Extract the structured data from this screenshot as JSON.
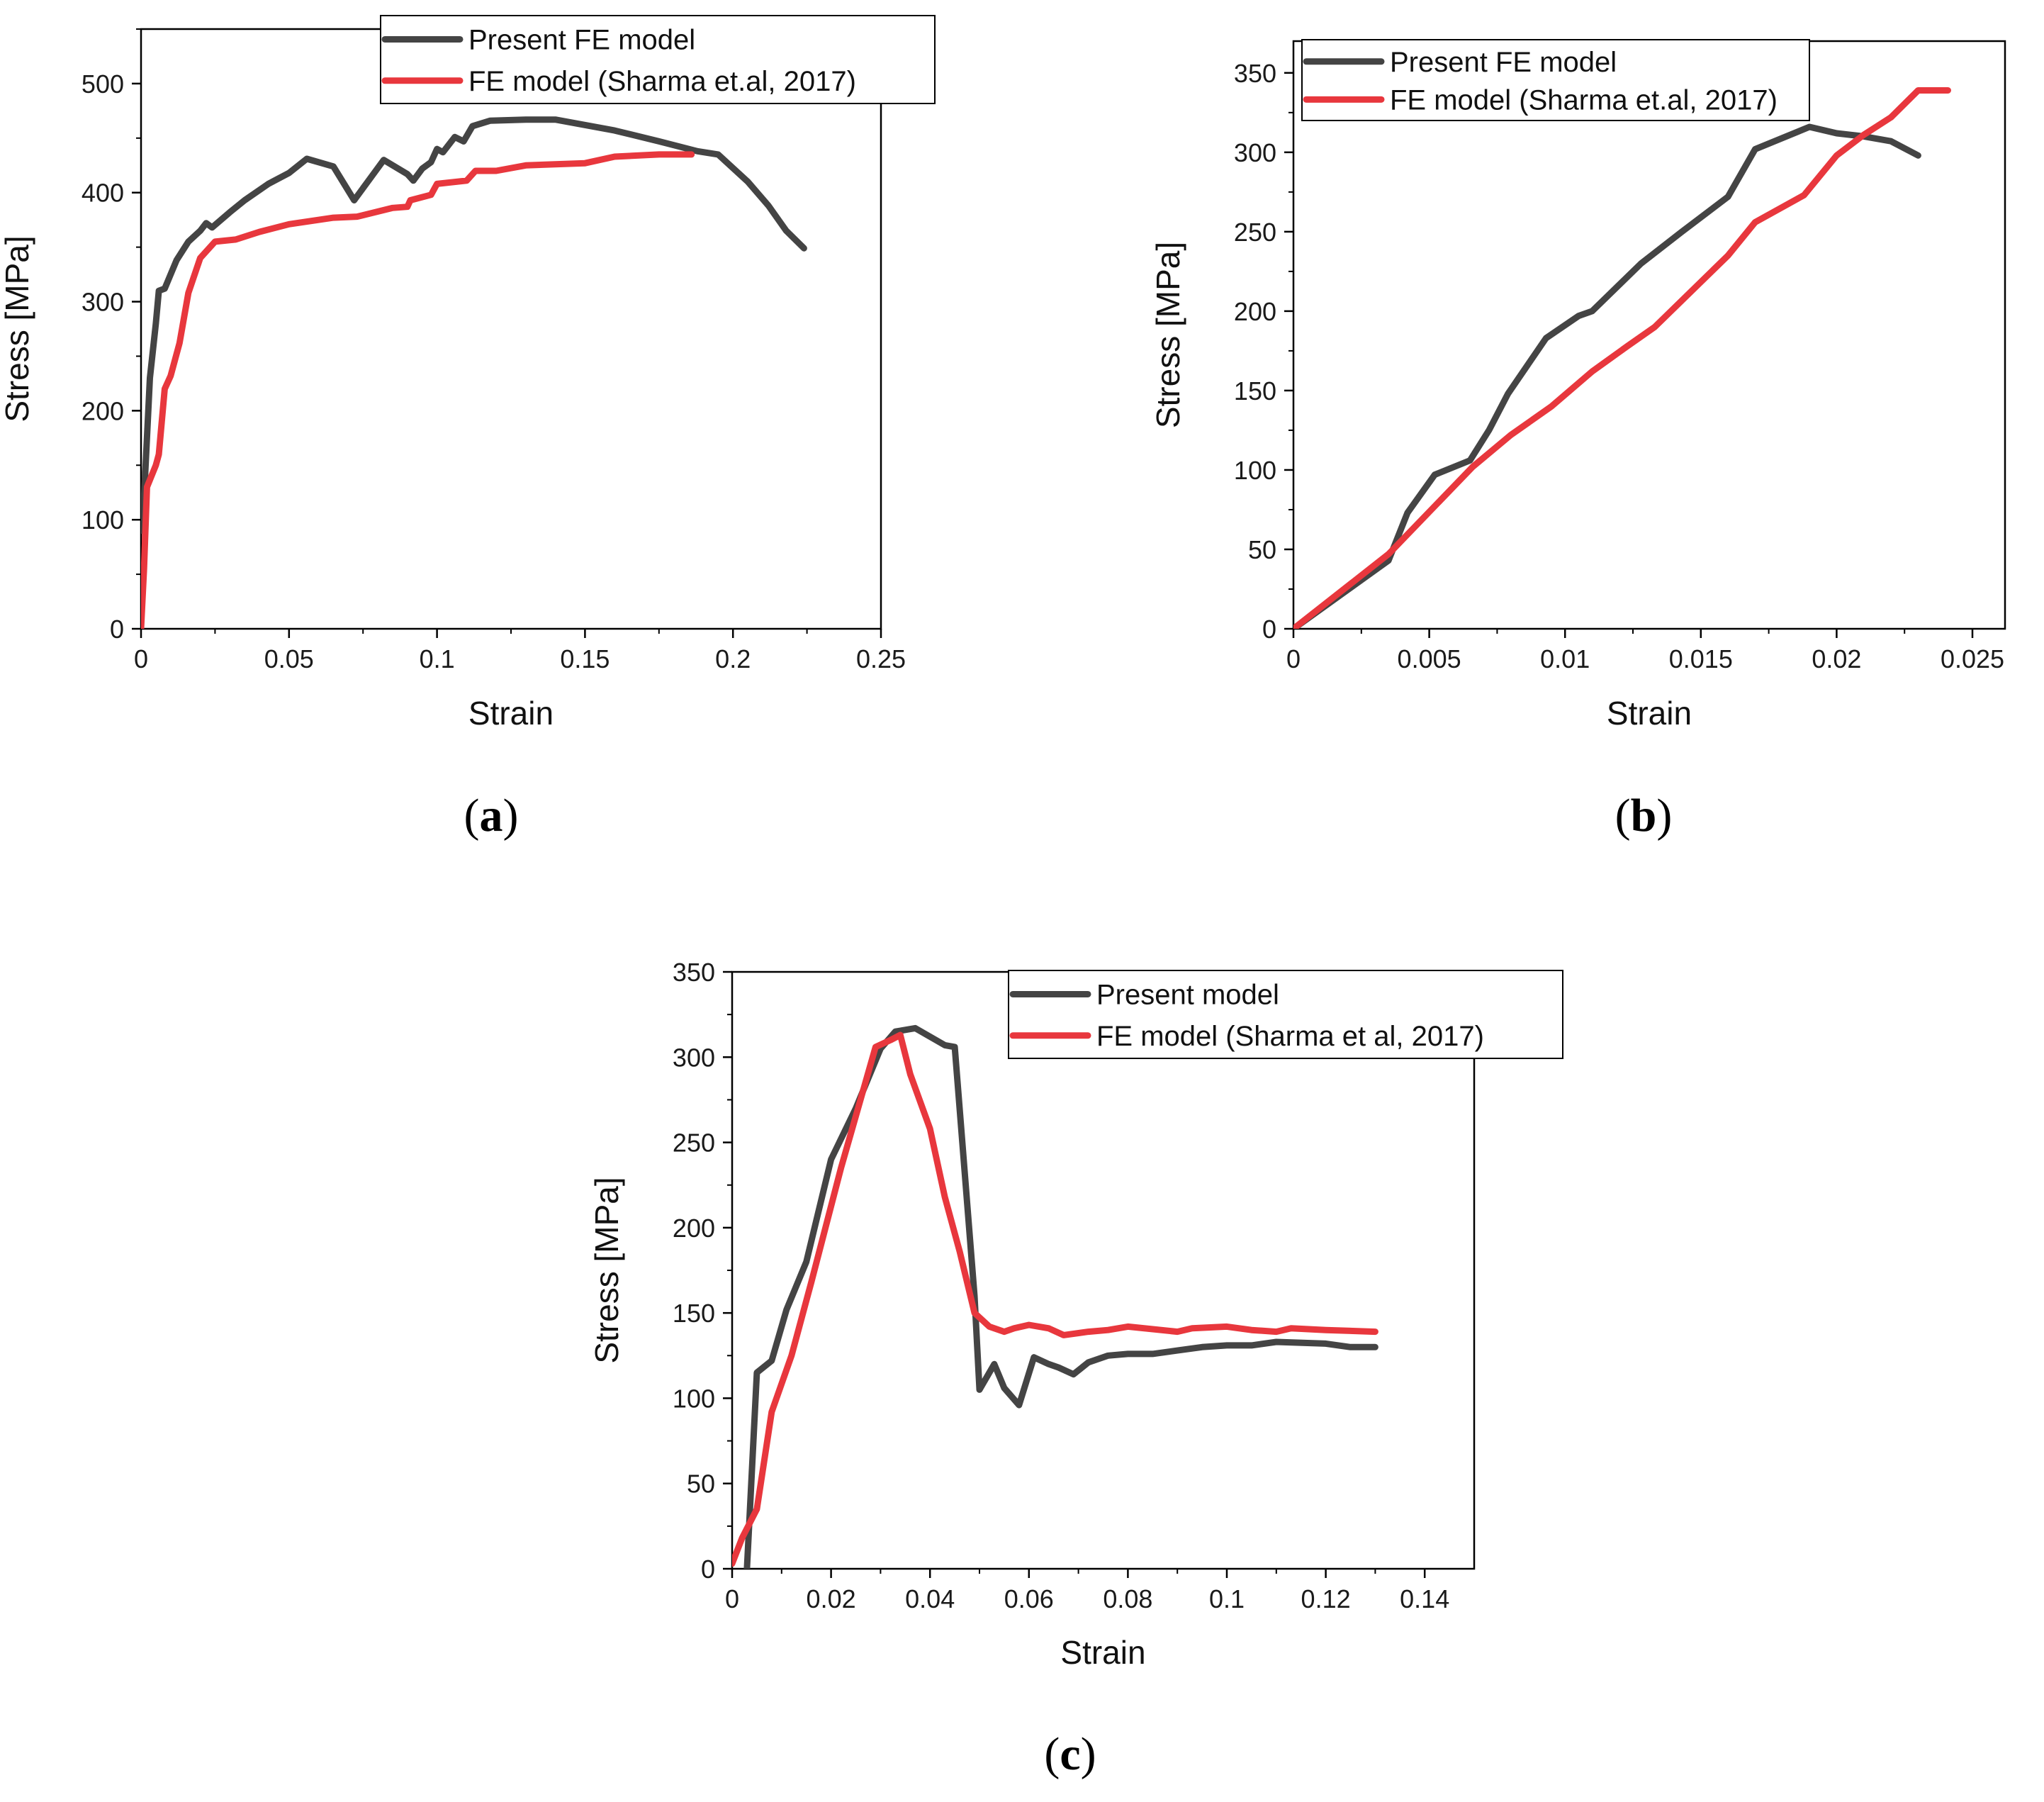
{
  "chart_data": [
    {
      "type": "line",
      "panel_label": "(a)",
      "panel_letter": "a",
      "xlabel": "Strain",
      "ylabel": "Stress [MPa]",
      "xlim": [
        0,
        0.25
      ],
      "ylim": [
        0,
        550
      ],
      "xticks": [
        0,
        0.05,
        0.1,
        0.15,
        0.2,
        0.25
      ],
      "xtick_labels": [
        "0",
        "0.05",
        "0.1",
        "0.15",
        "0.2",
        "0.25"
      ],
      "yticks": [
        0,
        100,
        200,
        300,
        400,
        500
      ],
      "ytick_labels": [
        "0",
        "100",
        "200",
        "300",
        "400",
        "500"
      ],
      "legend_position": "top",
      "series": [
        {
          "name": "Present FE model",
          "color": "#444444",
          "points": [
            [
              0,
              90
            ],
            [
              0.001,
              120
            ],
            [
              0.003,
              230
            ],
            [
              0.005,
              280
            ],
            [
              0.006,
              310
            ],
            [
              0.008,
              312
            ],
            [
              0.012,
              338
            ],
            [
              0.016,
              355
            ],
            [
              0.02,
              365
            ],
            [
              0.022,
              372
            ],
            [
              0.024,
              368
            ],
            [
              0.03,
              382
            ],
            [
              0.035,
              393
            ],
            [
              0.043,
              408
            ],
            [
              0.05,
              418
            ],
            [
              0.056,
              431
            ],
            [
              0.065,
              424
            ],
            [
              0.072,
              393
            ],
            [
              0.082,
              430
            ],
            [
              0.09,
              417
            ],
            [
              0.092,
              411
            ],
            [
              0.095,
              422
            ],
            [
              0.098,
              428
            ],
            [
              0.1,
              440
            ],
            [
              0.102,
              437
            ],
            [
              0.106,
              451
            ],
            [
              0.109,
              447
            ],
            [
              0.112,
              461
            ],
            [
              0.118,
              466
            ],
            [
              0.13,
              467
            ],
            [
              0.14,
              467
            ],
            [
              0.16,
              457
            ],
            [
              0.175,
              447
            ],
            [
              0.188,
              438
            ],
            [
              0.195,
              435
            ],
            [
              0.205,
              410
            ],
            [
              0.212,
              388
            ],
            [
              0.218,
              365
            ],
            [
              0.224,
              349
            ]
          ]
        },
        {
          "name": "FE model (Sharma et.al, 2017)",
          "color": "#e8373d",
          "points": [
            [
              0,
              0
            ],
            [
              0.001,
              55
            ],
            [
              0.002,
              130
            ],
            [
              0.005,
              150
            ],
            [
              0.006,
              160
            ],
            [
              0.008,
              220
            ],
            [
              0.01,
              232
            ],
            [
              0.013,
              262
            ],
            [
              0.016,
              308
            ],
            [
              0.02,
              340
            ],
            [
              0.025,
              355
            ],
            [
              0.032,
              357
            ],
            [
              0.04,
              364
            ],
            [
              0.05,
              371
            ],
            [
              0.065,
              377
            ],
            [
              0.073,
              378
            ],
            [
              0.085,
              386
            ],
            [
              0.09,
              387
            ],
            [
              0.091,
              393
            ],
            [
              0.098,
              398
            ],
            [
              0.1,
              408
            ],
            [
              0.11,
              411
            ],
            [
              0.113,
              420
            ],
            [
              0.12,
              420
            ],
            [
              0.13,
              425
            ],
            [
              0.15,
              427
            ],
            [
              0.16,
              433
            ],
            [
              0.175,
              435
            ],
            [
              0.186,
              435
            ]
          ]
        }
      ]
    },
    {
      "type": "line",
      "panel_label": "(b)",
      "panel_letter": "b",
      "xlabel": "Strain",
      "ylabel": "Stress [MPa]",
      "xlim": [
        0,
        0.0262
      ],
      "ylim": [
        0,
        370
      ],
      "xticks": [
        0,
        0.005,
        0.01,
        0.015,
        0.02,
        0.025
      ],
      "xtick_labels": [
        "0",
        "0.005",
        "0.01",
        "0.015",
        "0.02",
        "0.025"
      ],
      "yticks": [
        0,
        50,
        100,
        150,
        200,
        250,
        300,
        350
      ],
      "ytick_labels": [
        "0",
        "50",
        "100",
        "150",
        "200",
        "250",
        "300",
        "350"
      ],
      "legend_position": "top-left",
      "series": [
        {
          "name": "Present FE model",
          "color": "#444444",
          "points": [
            [
              0,
              0
            ],
            [
              0.0035,
              43
            ],
            [
              0.0042,
              73
            ],
            [
              0.0052,
              97
            ],
            [
              0.0065,
              106
            ],
            [
              0.0072,
              125
            ],
            [
              0.0079,
              148
            ],
            [
              0.0093,
              183
            ],
            [
              0.0105,
              197
            ],
            [
              0.011,
              200
            ],
            [
              0.0128,
              230
            ],
            [
              0.0143,
              250
            ],
            [
              0.016,
              272
            ],
            [
              0.017,
              302
            ],
            [
              0.019,
              316
            ],
            [
              0.02,
              312
            ],
            [
              0.021,
              310
            ],
            [
              0.022,
              307
            ],
            [
              0.023,
              298
            ]
          ]
        },
        {
          "name": "FE model (Sharma et.al, 2017)",
          "color": "#e8373d",
          "points": [
            [
              0,
              0
            ],
            [
              0.0035,
              47
            ],
            [
              0.0066,
              102
            ],
            [
              0.008,
              122
            ],
            [
              0.0095,
              140
            ],
            [
              0.011,
              162
            ],
            [
              0.0123,
              178
            ],
            [
              0.0133,
              190
            ],
            [
              0.016,
              235
            ],
            [
              0.017,
              256
            ],
            [
              0.0188,
              273
            ],
            [
              0.02,
              298
            ],
            [
              0.021,
              311
            ],
            [
              0.022,
              322
            ],
            [
              0.023,
              339
            ],
            [
              0.0241,
              339
            ]
          ]
        }
      ]
    },
    {
      "type": "line",
      "panel_label": "(c)",
      "panel_letter": "c",
      "xlabel": "Strain",
      "ylabel": "Stress [MPa]",
      "xlim": [
        0,
        0.15
      ],
      "ylim": [
        0,
        350
      ],
      "xticks": [
        0,
        0.02,
        0.04,
        0.06,
        0.08,
        0.1,
        0.12,
        0.14
      ],
      "xtick_labels": [
        "0",
        "0.02",
        "0.04",
        "0.06",
        "0.08",
        "0.1",
        "0.12",
        "0.14"
      ],
      "yticks": [
        0,
        50,
        100,
        150,
        200,
        250,
        300,
        350
      ],
      "ytick_labels": [
        "0",
        "50",
        "100",
        "150",
        "200",
        "250",
        "300",
        "350"
      ],
      "legend_position": "top-right",
      "series": [
        {
          "name": "Present model",
          "color": "#444444",
          "points": [
            [
              0.003,
              0
            ],
            [
              0.005,
              115
            ],
            [
              0.008,
              122
            ],
            [
              0.011,
              152
            ],
            [
              0.015,
              180
            ],
            [
              0.02,
              240
            ],
            [
              0.025,
              270
            ],
            [
              0.03,
              305
            ],
            [
              0.033,
              315
            ],
            [
              0.037,
              317
            ],
            [
              0.04,
              312
            ],
            [
              0.043,
              307
            ],
            [
              0.045,
              306
            ],
            [
              0.049,
              160
            ],
            [
              0.05,
              105
            ],
            [
              0.053,
              120
            ],
            [
              0.055,
              106
            ],
            [
              0.058,
              96
            ],
            [
              0.061,
              124
            ],
            [
              0.064,
              120
            ],
            [
              0.066,
              118
            ],
            [
              0.069,
              114
            ],
            [
              0.072,
              121
            ],
            [
              0.076,
              125
            ],
            [
              0.08,
              126
            ],
            [
              0.085,
              126
            ],
            [
              0.09,
              128
            ],
            [
              0.095,
              130
            ],
            [
              0.1,
              131
            ],
            [
              0.105,
              131
            ],
            [
              0.11,
              133
            ],
            [
              0.12,
              132
            ],
            [
              0.125,
              130
            ],
            [
              0.13,
              130
            ]
          ]
        },
        {
          "name": "FE model (Sharma et al, 2017)",
          "color": "#e8373d",
          "points": [
            [
              0,
              3
            ],
            [
              0.002,
              18
            ],
            [
              0.005,
              35
            ],
            [
              0.008,
              92
            ],
            [
              0.012,
              125
            ],
            [
              0.016,
              168
            ],
            [
              0.022,
              235
            ],
            [
              0.029,
              306
            ],
            [
              0.032,
              310
            ],
            [
              0.034,
              313
            ],
            [
              0.036,
              290
            ],
            [
              0.04,
              258
            ],
            [
              0.043,
              218
            ],
            [
              0.046,
              186
            ],
            [
              0.049,
              150
            ],
            [
              0.052,
              142
            ],
            [
              0.055,
              139
            ],
            [
              0.057,
              141
            ],
            [
              0.06,
              143
            ],
            [
              0.064,
              141
            ],
            [
              0.067,
              137
            ],
            [
              0.072,
              139
            ],
            [
              0.076,
              140
            ],
            [
              0.08,
              142
            ],
            [
              0.09,
              139
            ],
            [
              0.093,
              141
            ],
            [
              0.1,
              142
            ],
            [
              0.105,
              140
            ],
            [
              0.11,
              139
            ],
            [
              0.113,
              141
            ],
            [
              0.12,
              140
            ],
            [
              0.13,
              139
            ]
          ]
        }
      ]
    }
  ]
}
